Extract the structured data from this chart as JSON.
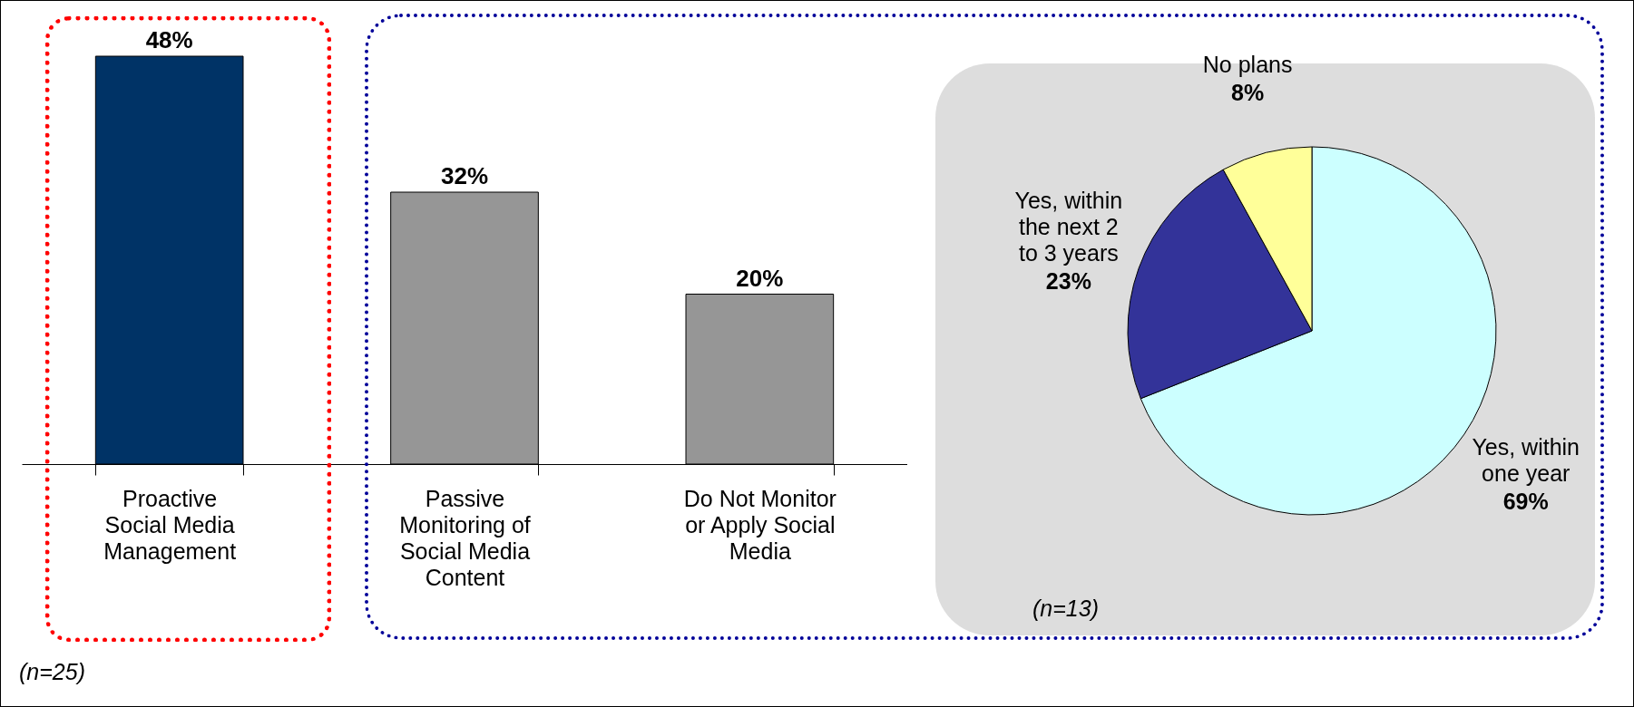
{
  "chart_data": [
    {
      "type": "bar",
      "categories": [
        "Proactive Social Media Management",
        "Passive Monitoring of Social Media Content",
        "Do Not Monitor or Apply Social Media"
      ],
      "values": [
        48,
        32,
        20
      ],
      "value_labels": [
        "48%",
        "32%",
        "20%"
      ],
      "colors": [
        "#003366",
        "#969696",
        "#969696"
      ],
      "annotations": [
        "(n=25)"
      ]
    },
    {
      "type": "pie",
      "categories": [
        "Yes, within one year",
        "Yes, within the next 2 to 3 years",
        "No plans"
      ],
      "values": [
        69,
        23,
        8
      ],
      "colors": [
        "#ccffff",
        "#333399",
        "#ffff99"
      ],
      "value_labels": [
        "69%",
        "23%",
        "8%"
      ],
      "annotations": [
        "(n=13)"
      ]
    }
  ]
}
